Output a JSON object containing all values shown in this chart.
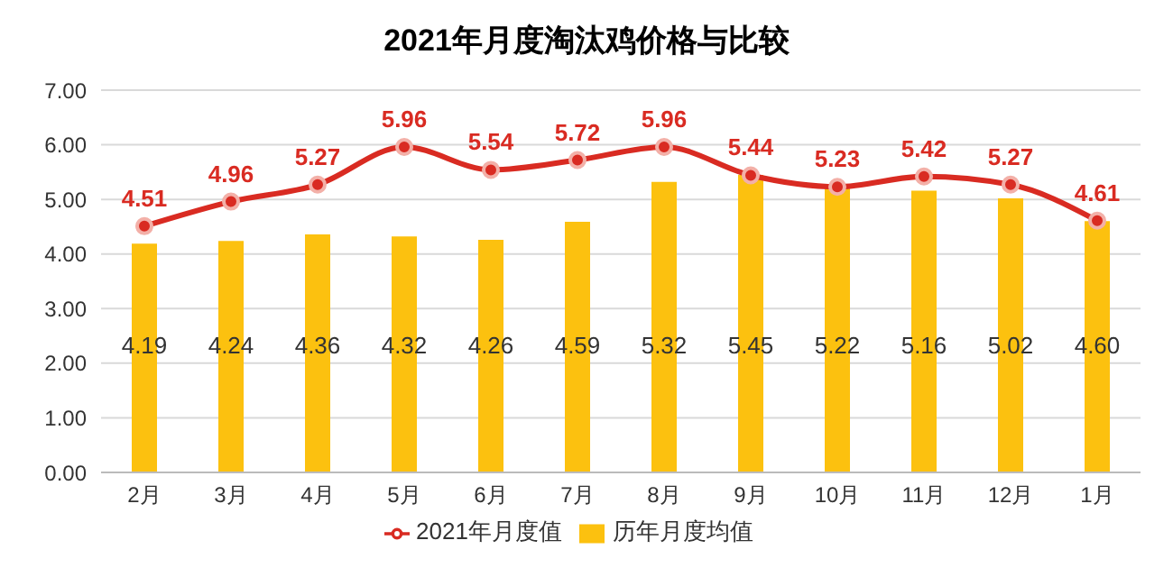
{
  "chart_data": {
    "type": "bar",
    "title": "2021年月度淘汰鸡价格与比较",
    "categories": [
      "2月",
      "3月",
      "4月",
      "5月",
      "6月",
      "7月",
      "8月",
      "9月",
      "10月",
      "11月",
      "12月",
      "1月"
    ],
    "series": [
      {
        "name": "历年月度均值",
        "color": "#fcc10f",
        "values": [
          4.19,
          4.24,
          4.36,
          4.32,
          4.26,
          4.59,
          5.32,
          5.45,
          5.22,
          5.16,
          5.02,
          4.6
        ],
        "value_labels": [
          "4.19",
          "4.24",
          "4.36",
          "4.32",
          "4.26",
          "4.59",
          "5.32",
          "5.45",
          "5.22",
          "5.16",
          "5.02",
          "4.60"
        ]
      },
      {
        "name": "2021年月度值",
        "type": "line",
        "color": "#d92b22",
        "marker": "circle",
        "values": [
          4.51,
          4.96,
          5.27,
          5.96,
          5.54,
          5.72,
          5.96,
          5.44,
          5.23,
          5.42,
          5.27,
          4.61
        ],
        "value_labels": [
          "4.51",
          "4.96",
          "5.27",
          "5.96",
          "5.54",
          "5.72",
          "5.96",
          "5.44",
          "5.23",
          "5.42",
          "5.27",
          "4.61"
        ]
      }
    ],
    "ylim": [
      0,
      7
    ],
    "yticks": [
      {
        "value": 0,
        "label": "0.00"
      },
      {
        "value": 1,
        "label": "1.00"
      },
      {
        "value": 2,
        "label": "2.00"
      },
      {
        "value": 3,
        "label": "3.00"
      },
      {
        "value": 4,
        "label": "4.00"
      },
      {
        "value": 5,
        "label": "5.00"
      },
      {
        "value": 6,
        "label": "6.00"
      },
      {
        "value": 7,
        "label": "7.00"
      }
    ],
    "grid": "y",
    "legend": "bottom"
  }
}
